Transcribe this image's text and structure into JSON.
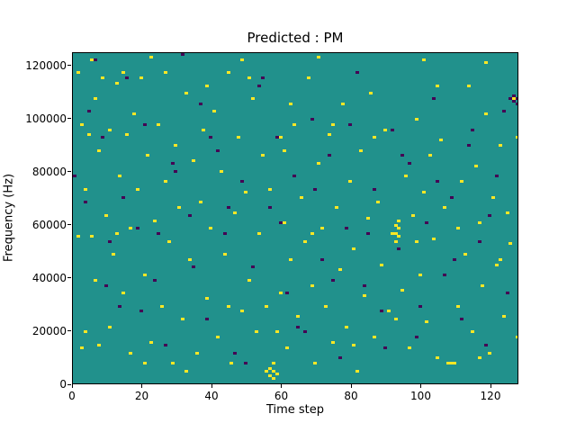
{
  "chart_data": {
    "type": "heatmap",
    "title": "Predicted : PM",
    "xlabel": "Time step",
    "ylabel": "Frequency (Hz)",
    "x_range": [
      0,
      128
    ],
    "y_range": [
      0,
      125000
    ],
    "x_ticks": [
      0,
      20,
      40,
      60,
      80,
      100,
      120
    ],
    "y_ticks": [
      0,
      20000,
      40000,
      60000,
      80000,
      100000,
      120000
    ],
    "time_steps": 128,
    "freq_bins": 128,
    "grid": false,
    "legend_position": "none",
    "colors": {
      "background": "#21918c",
      "high": "#fde725",
      "low": "#440154"
    },
    "yellow_points": [
      [
        1,
        120
      ],
      [
        1,
        57
      ],
      [
        2,
        100
      ],
      [
        2,
        14
      ],
      [
        3,
        20
      ],
      [
        3,
        75
      ],
      [
        4,
        96
      ],
      [
        5,
        57
      ],
      [
        5,
        125
      ],
      [
        6,
        40
      ],
      [
        6,
        110
      ],
      [
        7,
        15
      ],
      [
        7,
        90
      ],
      [
        8,
        118
      ],
      [
        9,
        65
      ],
      [
        10,
        98
      ],
      [
        10,
        22
      ],
      [
        11,
        50
      ],
      [
        12,
        58
      ],
      [
        12,
        116
      ],
      [
        13,
        80
      ],
      [
        14,
        35
      ],
      [
        14,
        120
      ],
      [
        15,
        96
      ],
      [
        16,
        60
      ],
      [
        16,
        12
      ],
      [
        17,
        104
      ],
      [
        18,
        75
      ],
      [
        19,
        118
      ],
      [
        20,
        42
      ],
      [
        20,
        8
      ],
      [
        21,
        88
      ],
      [
        22,
        16
      ],
      [
        22,
        126
      ],
      [
        23,
        63
      ],
      [
        24,
        100
      ],
      [
        25,
        30
      ],
      [
        26,
        78
      ],
      [
        26,
        120
      ],
      [
        27,
        55
      ],
      [
        28,
        8
      ],
      [
        29,
        92
      ],
      [
        30,
        68
      ],
      [
        31,
        25
      ],
      [
        32,
        112
      ],
      [
        32,
        5
      ],
      [
        33,
        48
      ],
      [
        34,
        86
      ],
      [
        35,
        12
      ],
      [
        36,
        70
      ],
      [
        37,
        98
      ],
      [
        38,
        33
      ],
      [
        38,
        115
      ],
      [
        39,
        60
      ],
      [
        40,
        105
      ],
      [
        41,
        18
      ],
      [
        42,
        82
      ],
      [
        43,
        50
      ],
      [
        44,
        120
      ],
      [
        44,
        30
      ],
      [
        45,
        8
      ],
      [
        46,
        66
      ],
      [
        47,
        95
      ],
      [
        48,
        28
      ],
      [
        48,
        125
      ],
      [
        49,
        74
      ],
      [
        50,
        40
      ],
      [
        50,
        118
      ],
      [
        51,
        110
      ],
      [
        52,
        20
      ],
      [
        53,
        58
      ],
      [
        54,
        88
      ],
      [
        55,
        5
      ],
      [
        55,
        30
      ],
      [
        56,
        3
      ],
      [
        56,
        6
      ],
      [
        56,
        75
      ],
      [
        57,
        2
      ],
      [
        57,
        5
      ],
      [
        57,
        8
      ],
      [
        58,
        4
      ],
      [
        58,
        20
      ],
      [
        59,
        35
      ],
      [
        59,
        95
      ],
      [
        60,
        62
      ],
      [
        60,
        90
      ],
      [
        61,
        14
      ],
      [
        62,
        48
      ],
      [
        62,
        108
      ],
      [
        63,
        100
      ],
      [
        64,
        26
      ],
      [
        65,
        72
      ],
      [
        66,
        55
      ],
      [
        67,
        118
      ],
      [
        68,
        38
      ],
      [
        68,
        58
      ],
      [
        69,
        8
      ],
      [
        70,
        85
      ],
      [
        70,
        126
      ],
      [
        71,
        60
      ],
      [
        72,
        30
      ],
      [
        73,
        96
      ],
      [
        74,
        16
      ],
      [
        74,
        100
      ],
      [
        75,
        68
      ],
      [
        76,
        44
      ],
      [
        77,
        108
      ],
      [
        78,
        22
      ],
      [
        79,
        78
      ],
      [
        80,
        52
      ],
      [
        80,
        15
      ],
      [
        81,
        5
      ],
      [
        82,
        90
      ],
      [
        83,
        34
      ],
      [
        84,
        64
      ],
      [
        85,
        112
      ],
      [
        86,
        18
      ],
      [
        86,
        95
      ],
      [
        87,
        70
      ],
      [
        88,
        46
      ],
      [
        89,
        98
      ],
      [
        90,
        28
      ],
      [
        91,
        58
      ],
      [
        92,
        55
      ],
      [
        92,
        58
      ],
      [
        92,
        61
      ],
      [
        92,
        25
      ],
      [
        93,
        57
      ],
      [
        93,
        60
      ],
      [
        93,
        63
      ],
      [
        94,
        36
      ],
      [
        95,
        80
      ],
      [
        96,
        14
      ],
      [
        97,
        65
      ],
      [
        98,
        102
      ],
      [
        98,
        55
      ],
      [
        99,
        42
      ],
      [
        100,
        74
      ],
      [
        100,
        125
      ],
      [
        101,
        24
      ],
      [
        102,
        88
      ],
      [
        103,
        56
      ],
      [
        104,
        10
      ],
      [
        104,
        115
      ],
      [
        105,
        94
      ],
      [
        106,
        68
      ],
      [
        107,
        8
      ],
      [
        108,
        8
      ],
      [
        109,
        8
      ],
      [
        110,
        30
      ],
      [
        110,
        60
      ],
      [
        111,
        78
      ],
      [
        112,
        50
      ],
      [
        113,
        115
      ],
      [
        114,
        20
      ],
      [
        115,
        84
      ],
      [
        116,
        62
      ],
      [
        116,
        10
      ],
      [
        117,
        38
      ],
      [
        118,
        104
      ],
      [
        118,
        124
      ],
      [
        119,
        12
      ],
      [
        120,
        72
      ],
      [
        121,
        46
      ],
      [
        122,
        92
      ],
      [
        122,
        48
      ],
      [
        123,
        26
      ],
      [
        124,
        66
      ],
      [
        125,
        54
      ],
      [
        126,
        110
      ],
      [
        127,
        18
      ],
      [
        127,
        95
      ]
    ],
    "dark_points": [
      [
        0,
        80
      ],
      [
        3,
        70
      ],
      [
        4,
        105
      ],
      [
        6,
        125
      ],
      [
        8,
        95
      ],
      [
        9,
        38
      ],
      [
        10,
        55
      ],
      [
        13,
        30
      ],
      [
        14,
        72
      ],
      [
        15,
        118
      ],
      [
        18,
        60
      ],
      [
        19,
        28
      ],
      [
        20,
        100
      ],
      [
        23,
        40
      ],
      [
        24,
        58
      ],
      [
        26,
        15
      ],
      [
        28,
        85
      ],
      [
        29,
        82
      ],
      [
        31,
        127
      ],
      [
        33,
        65
      ],
      [
        34,
        45
      ],
      [
        36,
        108
      ],
      [
        38,
        25
      ],
      [
        39,
        95
      ],
      [
        41,
        90
      ],
      [
        43,
        58
      ],
      [
        44,
        68
      ],
      [
        46,
        12
      ],
      [
        48,
        78
      ],
      [
        49,
        8
      ],
      [
        51,
        45
      ],
      [
        53,
        115
      ],
      [
        54,
        118
      ],
      [
        56,
        68
      ],
      [
        58,
        95
      ],
      [
        59,
        62
      ],
      [
        61,
        35
      ],
      [
        63,
        80
      ],
      [
        64,
        22
      ],
      [
        66,
        20
      ],
      [
        68,
        102
      ],
      [
        69,
        75
      ],
      [
        71,
        48
      ],
      [
        73,
        88
      ],
      [
        74,
        40
      ],
      [
        76,
        10
      ],
      [
        78,
        60
      ],
      [
        79,
        100
      ],
      [
        81,
        120
      ],
      [
        83,
        38
      ],
      [
        84,
        58
      ],
      [
        86,
        75
      ],
      [
        88,
        28
      ],
      [
        89,
        14
      ],
      [
        91,
        98
      ],
      [
        93,
        52
      ],
      [
        94,
        88
      ],
      [
        96,
        85
      ],
      [
        98,
        18
      ],
      [
        99,
        30
      ],
      [
        101,
        62
      ],
      [
        103,
        110
      ],
      [
        104,
        78
      ],
      [
        106,
        42
      ],
      [
        108,
        72
      ],
      [
        109,
        48
      ],
      [
        111,
        25
      ],
      [
        113,
        92
      ],
      [
        114,
        98
      ],
      [
        116,
        55
      ],
      [
        118,
        15
      ],
      [
        119,
        65
      ],
      [
        121,
        80
      ],
      [
        123,
        105
      ],
      [
        124,
        35
      ],
      [
        125,
        110
      ],
      [
        126,
        109
      ],
      [
        126,
        111
      ],
      [
        127,
        110
      ],
      [
        127,
        108
      ]
    ]
  }
}
